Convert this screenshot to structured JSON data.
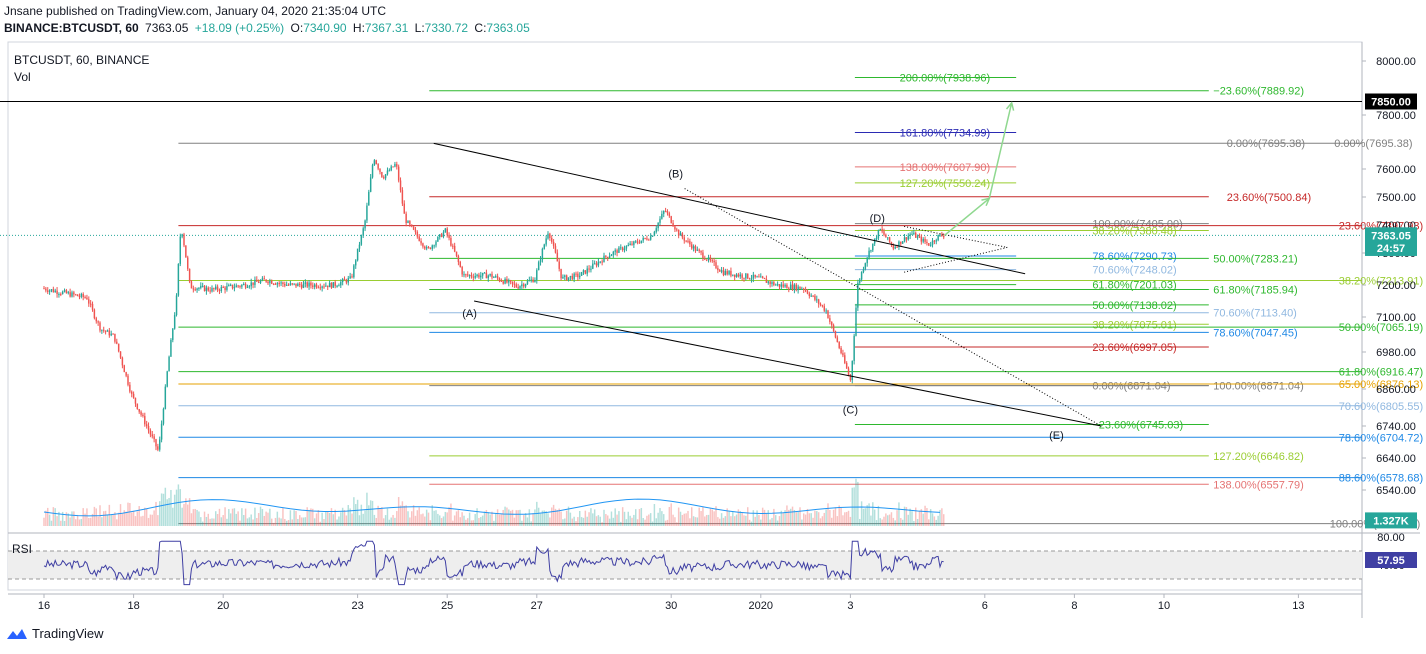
{
  "header": {
    "publisher_line": "Jnsane published on TradingView.com, January 04, 2020 21:35:04 UTC",
    "symbol": "BINANCE:BTCUSDT, 60",
    "last": "7363.05",
    "change": "+18.09 (+0.25%)",
    "o_label": "O:",
    "o_value": "7340.90",
    "h_label": "H:",
    "h_value": "7367.31",
    "l_label": "L:",
    "l_value": "7330.72",
    "c_label": "C:",
    "c_value": "7363.05"
  },
  "pane_titles": {
    "main": "BTCUSDT, 60, BINANCE",
    "vol": "Vol",
    "rsi": "RSI"
  },
  "footer": {
    "brand": "TradingView"
  },
  "colors": {
    "up": "#26a69a",
    "down": "#ef5350",
    "rsi": "#3f3fa3",
    "vol_ma": "#2196f3"
  },
  "chart_data": {
    "type": "candlestick",
    "price_axis": {
      "ylim": [
        6435,
        8050
      ],
      "ticks": [
        "8000.00",
        "7800.00",
        "7600.00",
        "7500.00",
        "7400.00",
        "7300.00",
        "7200.00",
        "7100.00",
        "6980.00",
        "6860.00",
        "6740.00",
        "6640.00",
        "6540.00"
      ],
      "tick_values": [
        8000,
        7800,
        7600,
        7500,
        7400,
        7300,
        7200,
        7100,
        6980,
        6860,
        6740,
        6640,
        6540
      ],
      "badges": [
        {
          "text": "7850.00",
          "value": 7850,
          "bg": "#000000",
          "fg": "#ffffff"
        },
        {
          "text": "7363.05",
          "value": 7363.05,
          "bg": "#26a69a",
          "fg": "#ffffff"
        },
        {
          "text": "24:57",
          "value": 7318,
          "bg": "#26a69a",
          "fg": "#ffffff"
        },
        {
          "text": "1.327K",
          "value": 6445,
          "bg": "#26a69a",
          "fg": "#ffffff"
        }
      ]
    },
    "time_axis": {
      "labels": [
        "16",
        "18",
        "20",
        "23",
        "25",
        "27",
        "30",
        "2020",
        "3",
        "6",
        "8",
        "10",
        "13"
      ],
      "label_day_index": [
        0,
        2,
        4,
        7,
        9,
        11,
        14,
        16,
        18,
        21,
        23,
        25,
        28
      ]
    },
    "price_path": [
      [
        0,
        7190
      ],
      [
        0.5,
        7175
      ],
      [
        1,
        7160
      ],
      [
        1.3,
        7060
      ],
      [
        1.6,
        7035
      ],
      [
        2,
        6840
      ],
      [
        2.4,
        6720
      ],
      [
        2.6,
        6660
      ],
      [
        2.8,
        6925
      ],
      [
        3.0,
        7160
      ],
      [
        3.1,
        7400
      ],
      [
        3.3,
        7195
      ],
      [
        3.8,
        7185
      ],
      [
        4.5,
        7200
      ],
      [
        5,
        7215
      ],
      [
        5.5,
        7200
      ],
      [
        6.5,
        7200
      ],
      [
        6.9,
        7220
      ],
      [
        7.2,
        7405
      ],
      [
        7.4,
        7645
      ],
      [
        7.6,
        7570
      ],
      [
        7.9,
        7620
      ],
      [
        8.1,
        7420
      ],
      [
        8.6,
        7310
      ],
      [
        9.0,
        7380
      ],
      [
        9.4,
        7230
      ],
      [
        10.0,
        7230
      ],
      [
        10.6,
        7195
      ],
      [
        11.0,
        7220
      ],
      [
        11.3,
        7380
      ],
      [
        11.6,
        7220
      ],
      [
        12.0,
        7230
      ],
      [
        12.6,
        7290
      ],
      [
        13.0,
        7320
      ],
      [
        13.6,
        7360
      ],
      [
        13.9,
        7455
      ],
      [
        14.2,
        7370
      ],
      [
        14.6,
        7310
      ],
      [
        15.2,
        7240
      ],
      [
        16.0,
        7220
      ],
      [
        16.4,
        7200
      ],
      [
        17.0,
        7190
      ],
      [
        17.5,
        7120
      ],
      [
        17.9,
        6950
      ],
      [
        18.05,
        6885
      ],
      [
        18.2,
        7200
      ],
      [
        18.4,
        7285
      ],
      [
        18.7,
        7385
      ],
      [
        19.0,
        7320
      ],
      [
        19.4,
        7370
      ],
      [
        19.8,
        7330
      ],
      [
        20.0,
        7360
      ],
      [
        20.1,
        7363
      ]
    ],
    "volume": {
      "ma_label": "volume MA"
    },
    "rsi": {
      "ticks": [
        "80.00",
        "40.00"
      ],
      "tick_values": [
        80,
        40
      ],
      "last": "57.95",
      "bands": [
        70,
        30
      ]
    },
    "fib_levels": [
      {
        "text": "200.00%(7938.96)",
        "value": 7938.96,
        "color": "#2eb82e",
        "x1": 18.1,
        "x2": 21.7,
        "lx": 19.1
      },
      {
        "text": "−23.60%(7889.92)",
        "value": 7889.92,
        "color": "#2eb82e",
        "x1": 8.6,
        "x2": 26.0,
        "lx": 26.1
      },
      {
        "text": "161.80%(7734.99)",
        "value": 7734.99,
        "color": "#2b2bb3",
        "x1": 18.1,
        "x2": 21.7,
        "lx": 19.1
      },
      {
        "text": "0.00%(7695.38)",
        "value": 7695.38,
        "color": "#808080",
        "x1": 3.0,
        "x2": 30.6,
        "lx": 26.4
      },
      {
        "text": "0.00%(7695.38)",
        "value": 7695.38,
        "color": "#808080",
        "x1": -1,
        "x2": -1,
        "lx": 28.8
      },
      {
        "text": "138.00%(7607.90)",
        "value": 7607.9,
        "color": "#e57373",
        "x1": 18.1,
        "x2": 21.7,
        "lx": 19.1
      },
      {
        "text": "127.20%(7550.24)",
        "value": 7550.24,
        "color": "#9acd32",
        "x1": 18.1,
        "x2": 21.7,
        "lx": 19.1
      },
      {
        "text": "23.60%(7500.84)",
        "value": 7500.84,
        "color": "#c62828",
        "x1": 8.6,
        "x2": 26.0,
        "lx": 26.4
      },
      {
        "text": "100.00%(7405.00)",
        "value": 7405.0,
        "color": "#808080",
        "x1": 18.1,
        "x2": 26.0,
        "lx": 23.4
      },
      {
        "text": "23.60%(7397.93)",
        "value": 7397.93,
        "color": "#c62828",
        "x1": 3.0,
        "x2": 30.6,
        "lx": 28.9
      },
      {
        "text": "38.20%(7380.48)",
        "value": 7380.48,
        "color": "#9acd32",
        "x1": 18.1,
        "x2": 26.0,
        "lx": 23.4
      },
      {
        "text": "78.60%(7290.73)",
        "value": 7290.73,
        "color": "#1e88e5",
        "x1": 18.1,
        "x2": 21.7,
        "lx": 23.4
      },
      {
        "text": "50.00%(7283.21)",
        "value": 7283.21,
        "color": "#2eb82e",
        "x1": 8.6,
        "x2": 26.0,
        "lx": 26.1
      },
      {
        "text": "70.60%(7248.02)",
        "value": 7248.02,
        "color": "#90b8e0",
        "x1": 18.1,
        "x2": 21.7,
        "lx": 23.4
      },
      {
        "text": "38.20%(7213.91)",
        "value": 7213.91,
        "color": "#9acd32",
        "x1": 3.0,
        "x2": 30.6,
        "lx": 28.9
      },
      {
        "text": "61.80%(7201.03)",
        "value": 7201.03,
        "color": "#2eb82e",
        "x1": 18.1,
        "x2": 21.7,
        "lx": 23.4
      },
      {
        "text": "61.80%(7185.94)",
        "value": 7185.94,
        "color": "#2eb82e",
        "x1": 8.6,
        "x2": 26.0,
        "lx": 26.1
      },
      {
        "text": "50.00%(7138.02)",
        "value": 7138.02,
        "color": "#2eb82e",
        "x1": 18.1,
        "x2": 26.0,
        "lx": 23.4
      },
      {
        "text": "70.60%(7113.40)",
        "value": 7113.4,
        "color": "#90b8e0",
        "x1": 8.6,
        "x2": 26.0,
        "lx": 26.1
      },
      {
        "text": "38.20%(7075.01)",
        "value": 7075.01,
        "color": "#9acd32",
        "x1": 18.1,
        "x2": 26.0,
        "lx": 23.4
      },
      {
        "text": "50.00%(7065.19)",
        "value": 7065.19,
        "color": "#2eb82e",
        "x1": 3.0,
        "x2": 30.6,
        "lx": 28.9
      },
      {
        "text": "78.60%(7047.45)",
        "value": 7047.45,
        "color": "#1e88e5",
        "x1": 8.6,
        "x2": 26.0,
        "lx": 26.1
      },
      {
        "text": "23.60%(6997.05)",
        "value": 6997.05,
        "color": "#c62828",
        "x1": 18.1,
        "x2": 26.0,
        "lx": 23.4
      },
      {
        "text": "61.80%(6916.47)",
        "value": 6916.47,
        "color": "#2eb82e",
        "x1": 3.0,
        "x2": 30.6,
        "lx": 28.9
      },
      {
        "text": "0.00%(6871.04)",
        "value": 6871.04,
        "color": "#808080",
        "x1": 18.1,
        "x2": 26.0,
        "lx": 23.4
      },
      {
        "text": "100.00%(6871.04)",
        "value": 6871.04,
        "color": "#808080",
        "x1": 8.6,
        "x2": 26.0,
        "lx": 26.1
      },
      {
        "text": "65.00%(6876.13)",
        "value": 6876.13,
        "color": "#e6a100",
        "x1": 3.0,
        "x2": 30.6,
        "lx": 28.9
      },
      {
        "text": "70.60%(6805.55)",
        "value": 6805.55,
        "color": "#90b8e0",
        "x1": 3.0,
        "x2": 30.6,
        "lx": 28.9
      },
      {
        "text": "−23.60%(6745.03)",
        "value": 6745.03,
        "color": "#2eb82e",
        "x1": 18.1,
        "x2": 26.0,
        "lx": 23.4
      },
      {
        "text": "78.60%(6704.72)",
        "value": 6704.72,
        "color": "#1e88e5",
        "x1": 3.0,
        "x2": 30.6,
        "lx": 28.9
      },
      {
        "text": "127.20%(6646.82)",
        "value": 6646.82,
        "color": "#9acd32",
        "x1": 8.6,
        "x2": 26.0,
        "lx": 26.1
      },
      {
        "text": "88.60%(6578.68)",
        "value": 6578.68,
        "color": "#1e88e5",
        "x1": 3.0,
        "x2": 30.6,
        "lx": 28.9
      },
      {
        "text": "138.00%(6557.79)",
        "value": 6557.79,
        "color": "#e57373",
        "x1": 8.6,
        "x2": 26.0,
        "lx": 26.1
      },
      {
        "text": "100.00%(6435.00)",
        "value": 6435.0,
        "color": "#808080",
        "x1": 3.0,
        "x2": 30.6,
        "lx": 28.7
      }
    ],
    "wave_labels": [
      {
        "text": "(A)",
        "day": 9.5,
        "value": 7100
      },
      {
        "text": "(B)",
        "day": 14.1,
        "value": 7570
      },
      {
        "text": "(C)",
        "day": 18.0,
        "value": 6780
      },
      {
        "text": "(D)",
        "day": 18.6,
        "value": 7410
      },
      {
        "text": "(E)",
        "day": 22.6,
        "value": 6700
      }
    ],
    "trendlines": [
      {
        "d1": 8.7,
        "v1": 7695,
        "d2": 21.9,
        "v2": 7235,
        "style": "solid"
      },
      {
        "d1": 9.6,
        "v1": 7150,
        "d2": 23.6,
        "v2": 6740,
        "style": "solid"
      },
      {
        "d1": 14.3,
        "v1": 7530,
        "d2": 23.6,
        "v2": 6740,
        "style": "dotted"
      },
      {
        "d1": 19.2,
        "v1": 7395,
        "d2": 21.5,
        "v2": 7320,
        "style": "dotted"
      },
      {
        "d1": 19.2,
        "v1": 7240,
        "d2": 21.5,
        "v2": 7320,
        "style": "dotted"
      }
    ],
    "projection": [
      {
        "d1": 20.1,
        "v1": 7363,
        "d2": 21.1,
        "v2": 7495
      },
      {
        "d1": 21.1,
        "v1": 7495,
        "d2": 21.6,
        "v2": 7845
      }
    ]
  }
}
